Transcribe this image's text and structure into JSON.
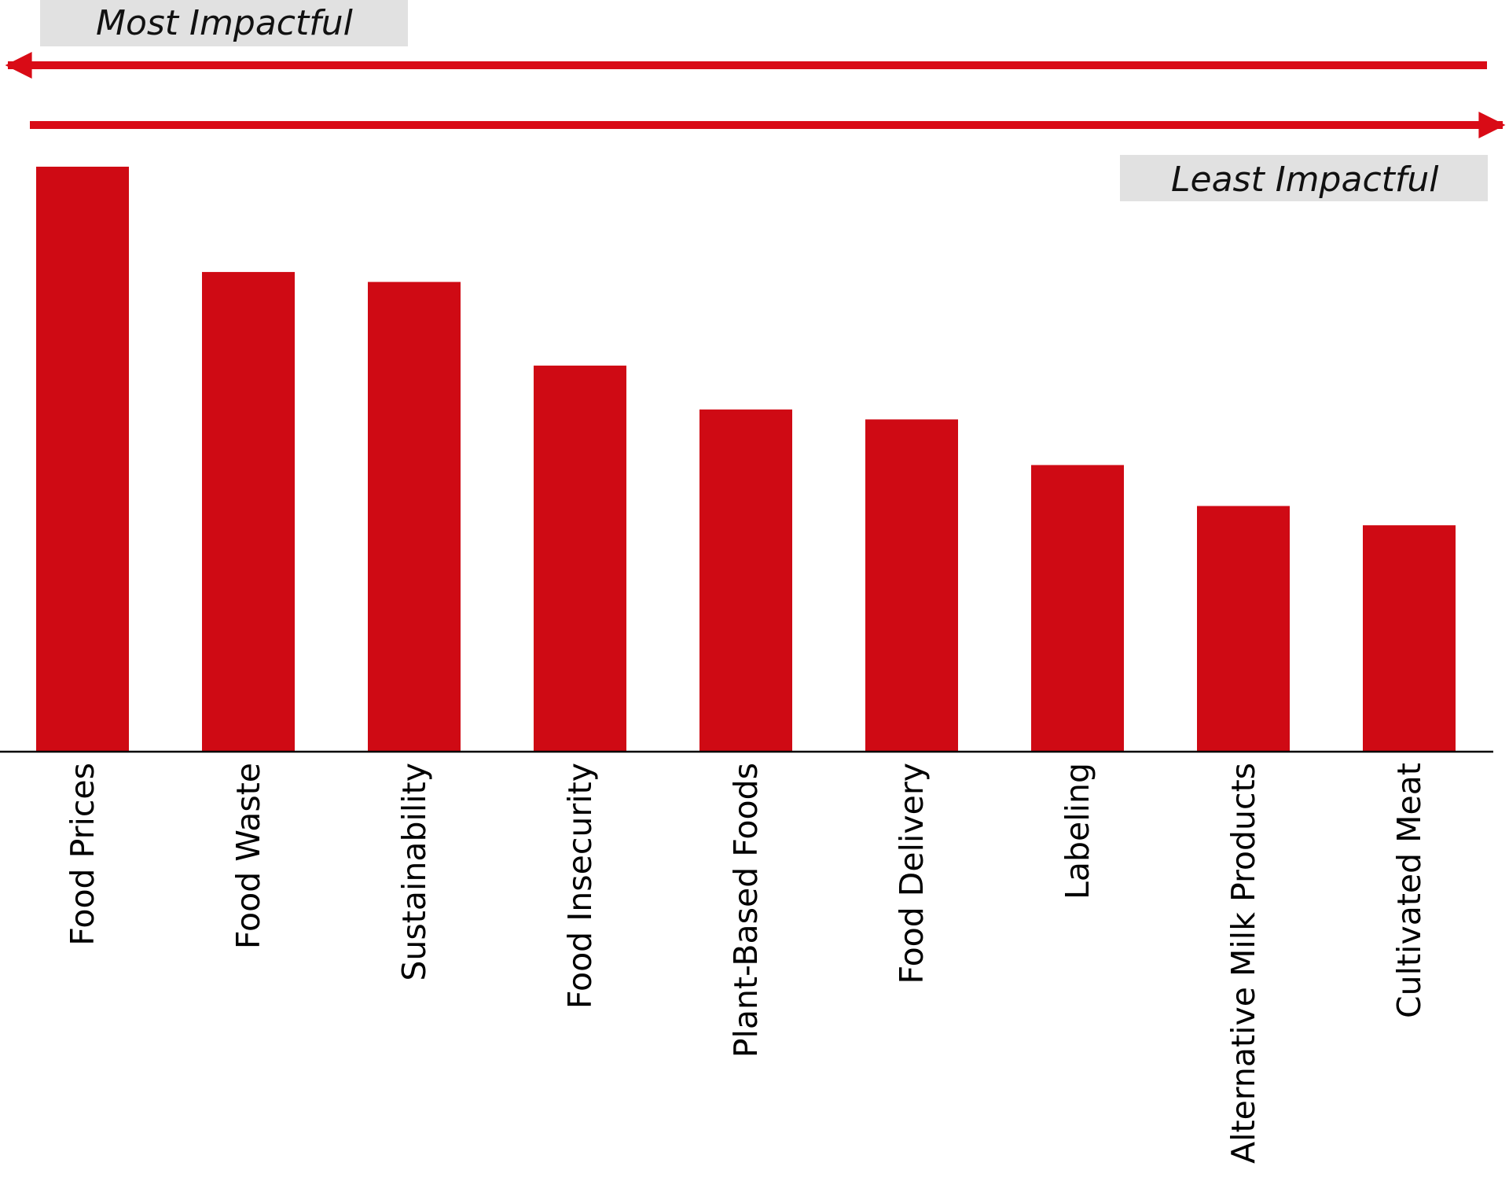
{
  "legend": {
    "most_label": "Most Impactful",
    "least_label": "Least Impactful"
  },
  "colors": {
    "bar": "#cf0a14",
    "arrow": "#d90b16",
    "axis": "#000000",
    "label_box": "#e1e1e1"
  },
  "chart_data": {
    "type": "bar",
    "title": "",
    "xlabel": "",
    "ylabel": "",
    "categories": [
      "Food Prices",
      "Food Waste",
      "Sustainability",
      "Food Insecurity",
      "Plant-Based Foods",
      "Food Delivery",
      "Labeling",
      "Alternative Milk Products",
      "Cultivated Meat"
    ],
    "values": [
      100,
      82,
      80.3,
      66,
      58.5,
      56.8,
      49,
      42,
      38.7
    ],
    "ylim": [
      0,
      100
    ],
    "grid": false,
    "y_axis_visible": false,
    "tick_labels_rotated": true
  }
}
